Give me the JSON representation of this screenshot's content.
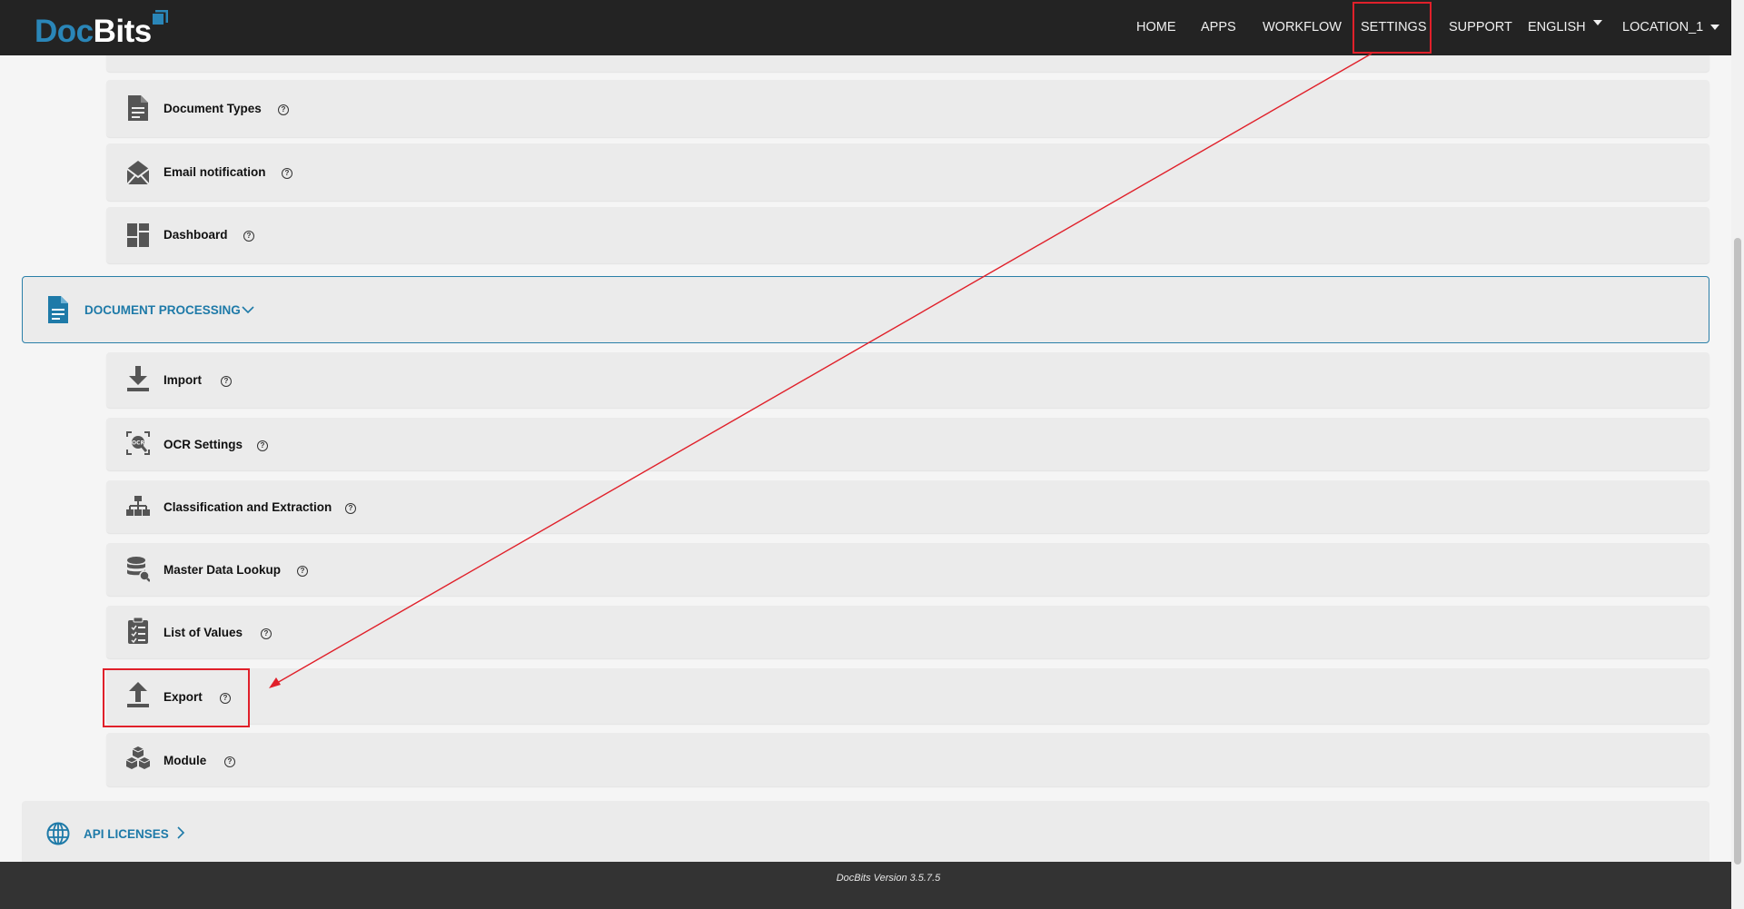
{
  "app": {
    "logo_doc": "Doc",
    "logo_bits": "Bits"
  },
  "nav": {
    "home": "HOME",
    "apps": "APPS",
    "workflow": "WORKFLOW",
    "settings": "SETTINGS",
    "support": "SUPPORT",
    "language": "ENGLISH",
    "location": "LOCATION_1"
  },
  "general_items": [
    {
      "label": "Document Types",
      "icon": "document-icon"
    },
    {
      "label": "Email notification",
      "icon": "email-icon"
    },
    {
      "label": "Dashboard",
      "icon": "dashboard-icon"
    }
  ],
  "document_processing": {
    "title": "DOCUMENT PROCESSING",
    "items": [
      {
        "label": "Import",
        "icon": "download-icon"
      },
      {
        "label": "OCR Settings",
        "icon": "ocr-icon"
      },
      {
        "label": "Classification and Extraction",
        "icon": "hierarchy-icon"
      },
      {
        "label": "Master Data Lookup",
        "icon": "database-icon"
      },
      {
        "label": "List of Values",
        "icon": "checklist-icon"
      },
      {
        "label": "Export",
        "icon": "upload-icon"
      },
      {
        "label": "Module",
        "icon": "cubes-icon"
      }
    ]
  },
  "api_licenses": {
    "title": "API LICENSES"
  },
  "footer": {
    "version": "DocBits Version 3.5.7.5"
  },
  "colors": {
    "accent": "#1e7aa8",
    "topbar": "#232323",
    "highlight": "#e0202a"
  }
}
